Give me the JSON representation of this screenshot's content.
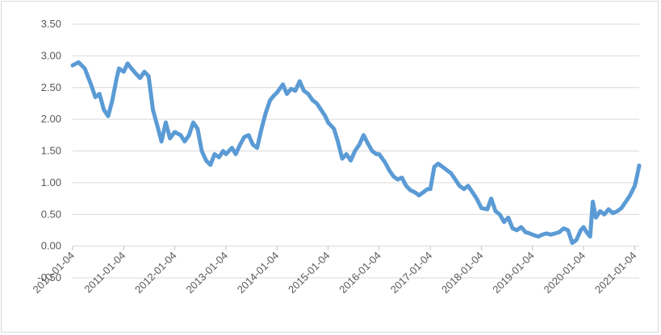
{
  "chart_data": {
    "type": "line",
    "title": "",
    "xlabel": "",
    "ylabel": "",
    "ylim": [
      -0.5,
      3.5
    ],
    "y_ticks": [
      "3.50",
      "3.00",
      "2.50",
      "2.00",
      "1.50",
      "1.00",
      "0.50",
      "0.00",
      "-0.50"
    ],
    "x_ticks": [
      "2010-01-04",
      "2011-01-04",
      "2012-01-04",
      "2013-01-04",
      "2014-01-04",
      "2015-01-04",
      "2016-01-04",
      "2017-01-04",
      "2018-01-04",
      "2019-01-04",
      "2020-01-04",
      "2021-01-04"
    ],
    "grid": "horizontal",
    "legend": "none",
    "series": [
      {
        "color": "#5b9bd5",
        "points": [
          [
            "2010-01-04",
            2.85
          ],
          [
            "2010-02-15",
            2.9
          ],
          [
            "2010-04-01",
            2.8
          ],
          [
            "2010-05-15",
            2.55
          ],
          [
            "2010-06-15",
            2.35
          ],
          [
            "2010-07-15",
            2.4
          ],
          [
            "2010-08-15",
            2.15
          ],
          [
            "2010-09-15",
            2.05
          ],
          [
            "2010-10-15",
            2.3
          ],
          [
            "2010-11-15",
            2.65
          ],
          [
            "2010-12-01",
            2.8
          ],
          [
            "2011-01-04",
            2.75
          ],
          [
            "2011-02-01",
            2.88
          ],
          [
            "2011-03-01",
            2.8
          ],
          [
            "2011-04-01",
            2.72
          ],
          [
            "2011-05-01",
            2.65
          ],
          [
            "2011-06-01",
            2.75
          ],
          [
            "2011-07-01",
            2.68
          ],
          [
            "2011-08-01",
            2.15
          ],
          [
            "2011-09-01",
            1.9
          ],
          [
            "2011-10-01",
            1.65
          ],
          [
            "2011-11-01",
            1.95
          ],
          [
            "2011-12-01",
            1.7
          ],
          [
            "2012-01-04",
            1.8
          ],
          [
            "2012-02-15",
            1.75
          ],
          [
            "2012-03-15",
            1.65
          ],
          [
            "2012-04-15",
            1.75
          ],
          [
            "2012-05-15",
            1.95
          ],
          [
            "2012-06-15",
            1.85
          ],
          [
            "2012-07-15",
            1.5
          ],
          [
            "2012-08-15",
            1.35
          ],
          [
            "2012-09-15",
            1.28
          ],
          [
            "2012-10-15",
            1.45
          ],
          [
            "2012-11-15",
            1.4
          ],
          [
            "2012-12-15",
            1.5
          ],
          [
            "2013-01-04",
            1.45
          ],
          [
            "2013-02-15",
            1.55
          ],
          [
            "2013-03-15",
            1.45
          ],
          [
            "2013-04-15",
            1.6
          ],
          [
            "2013-05-15",
            1.72
          ],
          [
            "2013-06-15",
            1.75
          ],
          [
            "2013-07-15",
            1.6
          ],
          [
            "2013-08-15",
            1.55
          ],
          [
            "2013-09-15",
            1.85
          ],
          [
            "2013-10-15",
            2.1
          ],
          [
            "2013-11-15",
            2.3
          ],
          [
            "2013-12-15",
            2.38
          ],
          [
            "2014-01-04",
            2.42
          ],
          [
            "2014-02-15",
            2.55
          ],
          [
            "2014-03-15",
            2.4
          ],
          [
            "2014-04-15",
            2.48
          ],
          [
            "2014-05-15",
            2.45
          ],
          [
            "2014-06-15",
            2.6
          ],
          [
            "2014-07-15",
            2.45
          ],
          [
            "2014-08-15",
            2.4
          ],
          [
            "2014-09-15",
            2.3
          ],
          [
            "2014-10-15",
            2.25
          ],
          [
            "2014-11-15",
            2.15
          ],
          [
            "2014-12-15",
            2.05
          ],
          [
            "2015-01-04",
            1.95
          ],
          [
            "2015-02-15",
            1.85
          ],
          [
            "2015-03-15",
            1.65
          ],
          [
            "2015-04-15",
            1.38
          ],
          [
            "2015-05-15",
            1.45
          ],
          [
            "2015-06-15",
            1.35
          ],
          [
            "2015-07-15",
            1.5
          ],
          [
            "2015-08-15",
            1.6
          ],
          [
            "2015-09-15",
            1.75
          ],
          [
            "2015-10-15",
            1.62
          ],
          [
            "2015-11-15",
            1.5
          ],
          [
            "2015-12-15",
            1.45
          ],
          [
            "2016-01-04",
            1.45
          ],
          [
            "2016-02-15",
            1.32
          ],
          [
            "2016-03-15",
            1.2
          ],
          [
            "2016-04-15",
            1.1
          ],
          [
            "2016-05-15",
            1.05
          ],
          [
            "2016-06-15",
            1.08
          ],
          [
            "2016-07-15",
            0.95
          ],
          [
            "2016-08-15",
            0.88
          ],
          [
            "2016-09-15",
            0.85
          ],
          [
            "2016-10-15",
            0.8
          ],
          [
            "2016-11-15",
            0.85
          ],
          [
            "2016-12-15",
            0.9
          ],
          [
            "2017-01-04",
            0.9
          ],
          [
            "2017-02-01",
            1.25
          ],
          [
            "2017-03-01",
            1.3
          ],
          [
            "2017-04-01",
            1.25
          ],
          [
            "2017-05-01",
            1.2
          ],
          [
            "2017-06-01",
            1.15
          ],
          [
            "2017-07-01",
            1.05
          ],
          [
            "2017-08-01",
            0.95
          ],
          [
            "2017-09-01",
            0.9
          ],
          [
            "2017-10-01",
            0.95
          ],
          [
            "2017-11-01",
            0.85
          ],
          [
            "2017-12-01",
            0.75
          ],
          [
            "2018-01-04",
            0.6
          ],
          [
            "2018-02-15",
            0.58
          ],
          [
            "2018-03-15",
            0.75
          ],
          [
            "2018-04-15",
            0.55
          ],
          [
            "2018-05-15",
            0.5
          ],
          [
            "2018-06-15",
            0.38
          ],
          [
            "2018-07-15",
            0.45
          ],
          [
            "2018-08-15",
            0.28
          ],
          [
            "2018-09-15",
            0.25
          ],
          [
            "2018-10-15",
            0.3
          ],
          [
            "2018-11-15",
            0.22
          ],
          [
            "2018-12-15",
            0.2
          ],
          [
            "2019-01-04",
            0.18
          ],
          [
            "2019-02-15",
            0.15
          ],
          [
            "2019-03-15",
            0.18
          ],
          [
            "2019-04-15",
            0.2
          ],
          [
            "2019-05-15",
            0.18
          ],
          [
            "2019-06-15",
            0.2
          ],
          [
            "2019-07-15",
            0.22
          ],
          [
            "2019-08-15",
            0.28
          ],
          [
            "2019-09-15",
            0.25
          ],
          [
            "2019-10-15",
            0.05
          ],
          [
            "2019-11-15",
            0.1
          ],
          [
            "2019-12-15",
            0.25
          ],
          [
            "2020-01-04",
            0.3
          ],
          [
            "2020-02-01",
            0.2
          ],
          [
            "2020-02-20",
            0.15
          ],
          [
            "2020-03-10",
            0.7
          ],
          [
            "2020-04-01",
            0.45
          ],
          [
            "2020-05-01",
            0.55
          ],
          [
            "2020-06-01",
            0.5
          ],
          [
            "2020-07-01",
            0.58
          ],
          [
            "2020-08-01",
            0.52
          ],
          [
            "2020-09-01",
            0.55
          ],
          [
            "2020-10-01",
            0.6
          ],
          [
            "2020-11-01",
            0.7
          ],
          [
            "2020-12-01",
            0.8
          ],
          [
            "2021-01-04",
            0.95
          ],
          [
            "2021-01-20",
            1.1
          ],
          [
            "2021-02-05",
            1.27
          ]
        ]
      }
    ]
  }
}
